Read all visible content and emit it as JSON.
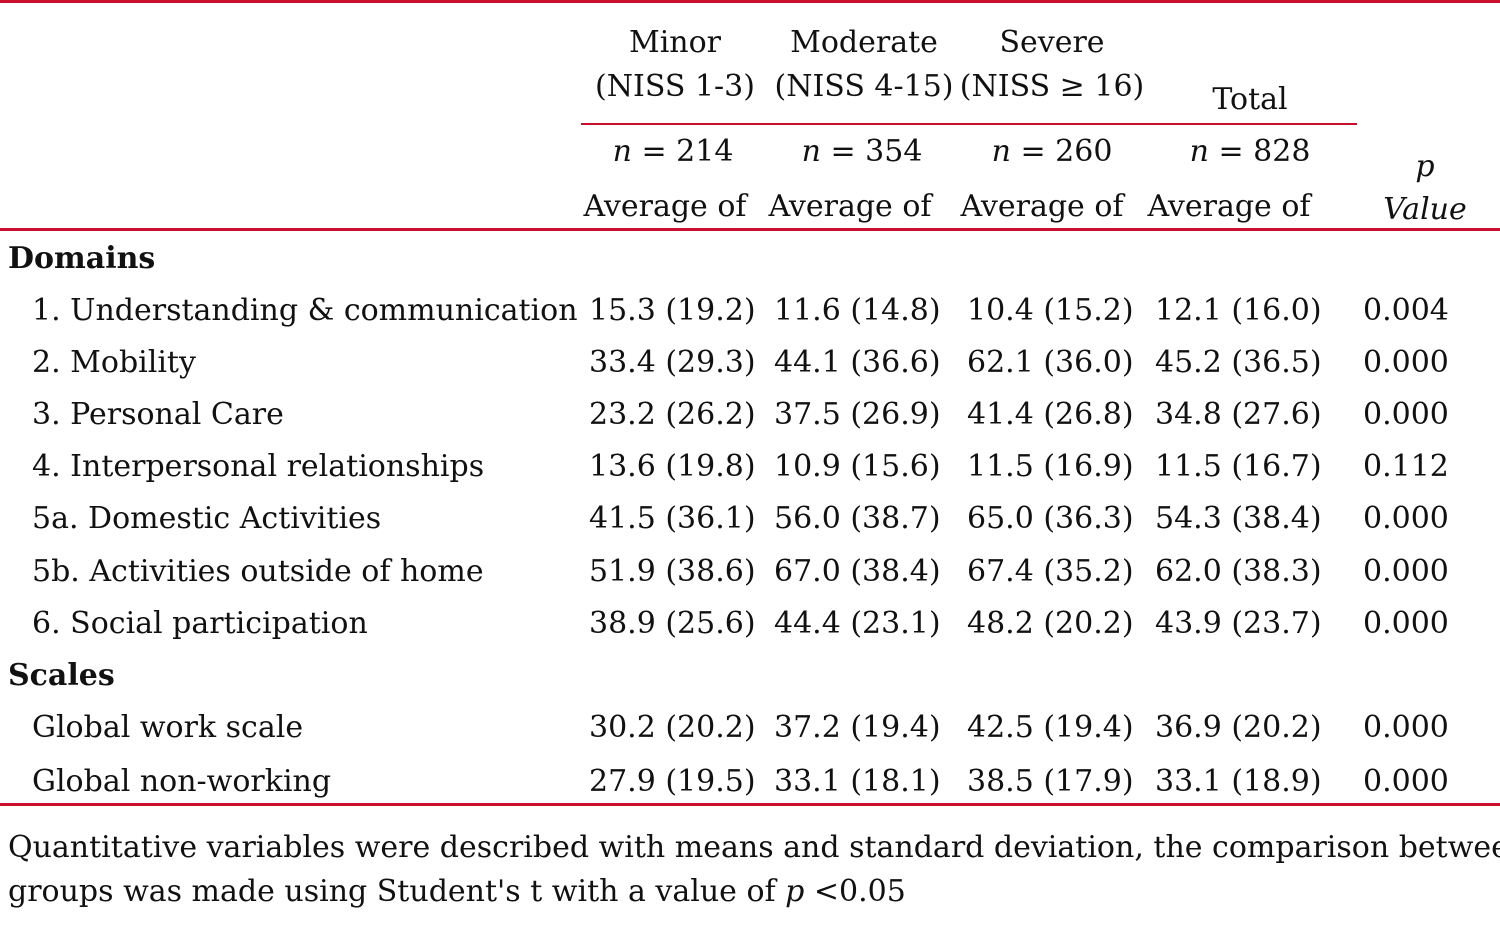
{
  "header": {
    "groups": [
      {
        "line1": "Minor",
        "line2": "(NISS 1-3)",
        "n_label": "n",
        "n_value": "= 214",
        "avg": "Average of"
      },
      {
        "line1": "Moderate",
        "line2": "(NISS 4-15)",
        "n_label": "n",
        "n_value": "= 354",
        "avg": "Average of"
      },
      {
        "line1": "Severe",
        "line2": "(NISS ≥ 16)",
        "n_label": "n",
        "n_value": "= 260",
        "avg": "Average of"
      }
    ],
    "total": {
      "label": "Total",
      "n_label": "n",
      "n_value": "= 828",
      "avg": "Average of"
    },
    "pvalue": {
      "line1": "p",
      "line2": "Value"
    }
  },
  "sections": [
    {
      "title": "Domains",
      "rows": [
        {
          "label": "1. Understanding & communication",
          "values": [
            "15.3 (19.2)",
            "11.6 (14.8)",
            "10.4 (15.2)",
            "12.1 (16.0)"
          ],
          "p": "0.004"
        },
        {
          "label": "2. Mobility",
          "values": [
            "33.4 (29.3)",
            "44.1 (36.6)",
            "62.1 (36.0)",
            "45.2 (36.5)"
          ],
          "p": "0.000"
        },
        {
          "label": "3. Personal Care",
          "values": [
            "23.2 (26.2)",
            "37.5 (26.9)",
            "41.4 (26.8)",
            "34.8 (27.6)"
          ],
          "p": "0.000"
        },
        {
          "label": "4. Interpersonal relationships",
          "values": [
            "13.6 (19.8)",
            "10.9 (15.6)",
            "11.5 (16.9)",
            "11.5 (16.7)"
          ],
          "p": "0.112"
        },
        {
          "label": "5a. Domestic Activities",
          "values": [
            "41.5 (36.1)",
            "56.0 (38.7)",
            "65.0 (36.3)",
            "54.3 (38.4)"
          ],
          "p": "0.000"
        },
        {
          "label": "5b. Activities outside of home",
          "values": [
            "51.9 (38.6)",
            "67.0 (38.4)",
            "67.4 (35.2)",
            "62.0 (38.3)"
          ],
          "p": "0.000"
        },
        {
          "label": "6. Social participation",
          "values": [
            "38.9 (25.6)",
            "44.4 (23.1)",
            "48.2 (20.2)",
            "43.9 (23.7)"
          ],
          "p": "0.000"
        }
      ]
    },
    {
      "title": "Scales",
      "rows": [
        {
          "label": "Global work scale",
          "values": [
            "30.2 (20.2)",
            "37.2 (19.4)",
            "42.5 (19.4)",
            "36.9 (20.2)"
          ],
          "p": "0.000"
        },
        {
          "label": "Global non-working",
          "values": [
            "27.9 (19.5)",
            "33.1 (18.1)",
            "38.5 (17.9)",
            "33.1 (18.9)"
          ],
          "p": "0.000"
        }
      ]
    }
  ],
  "footnote": {
    "line1": "Quantitative variables were described with means and standard deviation, the comparison between",
    "line2_a": "groups was made using Student's t with a value of",
    "line2_p": "p",
    "line2_b": " <0.05"
  },
  "colors": {
    "rule": "#c8102e",
    "text": "#111111"
  }
}
